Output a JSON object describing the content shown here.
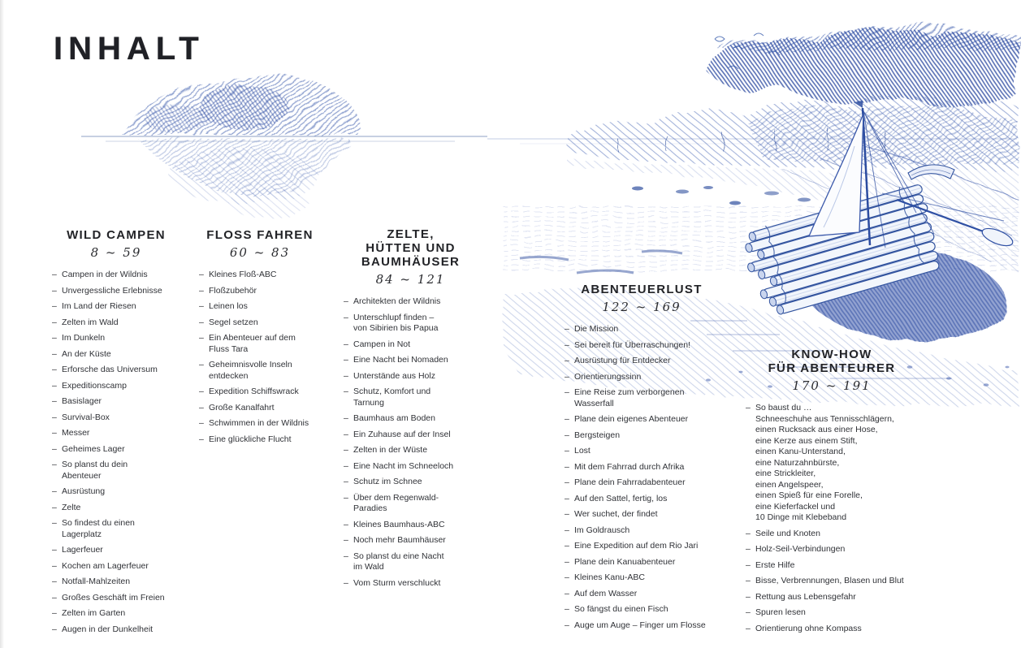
{
  "page": {
    "title": "INHALT"
  },
  "bullet": "–",
  "colors": {
    "ink": "#2e3036",
    "heading_ink": "#222327",
    "pen_blue": "#2f55a8",
    "pen_blue_dark": "#24449e",
    "pen_blue_light": "#b9c9e8"
  },
  "illustration_names": [
    "island-trees",
    "tree-canopy",
    "far-treeline",
    "shore",
    "raft",
    "sail",
    "mast",
    "rigging",
    "paddle",
    "boat",
    "water",
    "stones"
  ],
  "sections": [
    {
      "title": "WILD CAMPEN",
      "pages": "8 ~ 59",
      "items": [
        "Campen in der Wildnis",
        "Unvergessliche Erlebnisse",
        "Im Land der Riesen",
        "Zelten im Wald",
        "Im Dunkeln",
        "An der Küste",
        "Erforsche das Universum",
        "Expeditionscamp",
        "Basislager",
        "Survival-Box",
        "Messer",
        "Geheimes Lager",
        "So planst du dein\nAbenteuer",
        "Ausrüstung",
        "Zelte",
        "So findest du einen\nLagerplatz",
        "Lagerfeuer",
        "Kochen am Lagerfeuer",
        "Notfall-Mahlzeiten",
        "Großes Geschäft im Freien",
        "Zelten im Garten",
        "Augen in der Dunkelheit"
      ]
    },
    {
      "title": "FLOSS FAHREN",
      "pages": "60 ~ 83",
      "items": [
        "Kleines Floß-ABC",
        "Floßzubehör",
        "Leinen los",
        "Segel setzen",
        "Ein Abenteuer auf dem\nFluss Tara",
        "Geheimnisvolle Inseln\nentdecken",
        "Expedition Schiffswrack",
        "Große Kanalfahrt",
        "Schwimmen in der Wildnis",
        "Eine glückliche Flucht"
      ]
    },
    {
      "title": "ZELTE,\nHÜTTEN UND\nBAUMHÄUSER",
      "pages": "84 ~ 121",
      "items": [
        "Architekten der Wildnis",
        "Unterschlupf finden –\nvon Sibirien bis Papua",
        "Campen in Not",
        "Eine Nacht bei Nomaden",
        "Unterstände aus Holz",
        "Schutz, Komfort und\nTarnung",
        "Baumhaus am Boden",
        "Ein Zuhause auf der Insel",
        "Zelten in der Wüste",
        "Eine Nacht im Schneeloch",
        "Schutz im Schnee",
        "Über dem Regenwald-\nParadies",
        "Kleines Baumhaus-ABC",
        "Noch mehr Baumhäuser",
        "So planst du eine Nacht\nim Wald",
        "Vom Sturm verschluckt"
      ]
    },
    {
      "title": "ABENTEUERLUST",
      "pages": "122 ~ 169",
      "items": [
        "Die Mission",
        "Sei bereit für Überraschungen!",
        "Ausrüstung für Entdecker",
        "Orientierungssinn",
        "Eine Reise zum verborgenen\nWasserfall",
        "Plane dein eigenes Abenteuer",
        "Bergsteigen",
        "Lost",
        "Mit dem Fahrrad durch Afrika",
        "Plane dein Fahrradabenteuer",
        "Auf den Sattel, fertig, los",
        "Wer suchet, der findet",
        "Im Goldrausch",
        "Eine Expedition auf dem Rio Jari",
        "Plane dein Kanuabenteuer",
        "Kleines Kanu-ABC",
        "Auf dem Wasser",
        "So fängst du einen Fisch",
        "Auge um Auge – Finger um Flosse"
      ]
    },
    {
      "title": "KNOW-HOW\nFÜR ABENTEURER",
      "pages": "170 ~ 191",
      "items": [
        "So baust du …\nSchneeschuhe aus Tennisschlägern,\neinen Rucksack aus einer Hose,\neine Kerze aus einem Stift,\neinen Kanu-Unterstand,\neine Naturzahnbürste,\neine Strickleiter,\neinen Angelspeer,\neinen Spieß für eine Forelle,\neine Kieferfackel und\n10 Dinge mit Klebeband",
        "Seile und Knoten",
        "Holz-Seil-Verbindungen",
        "Erste Hilfe",
        "Bisse, Verbrennungen, Blasen und Blut",
        "Rettung aus Lebensgefahr",
        "Spuren lesen",
        "Orientierung ohne Kompass"
      ]
    }
  ]
}
